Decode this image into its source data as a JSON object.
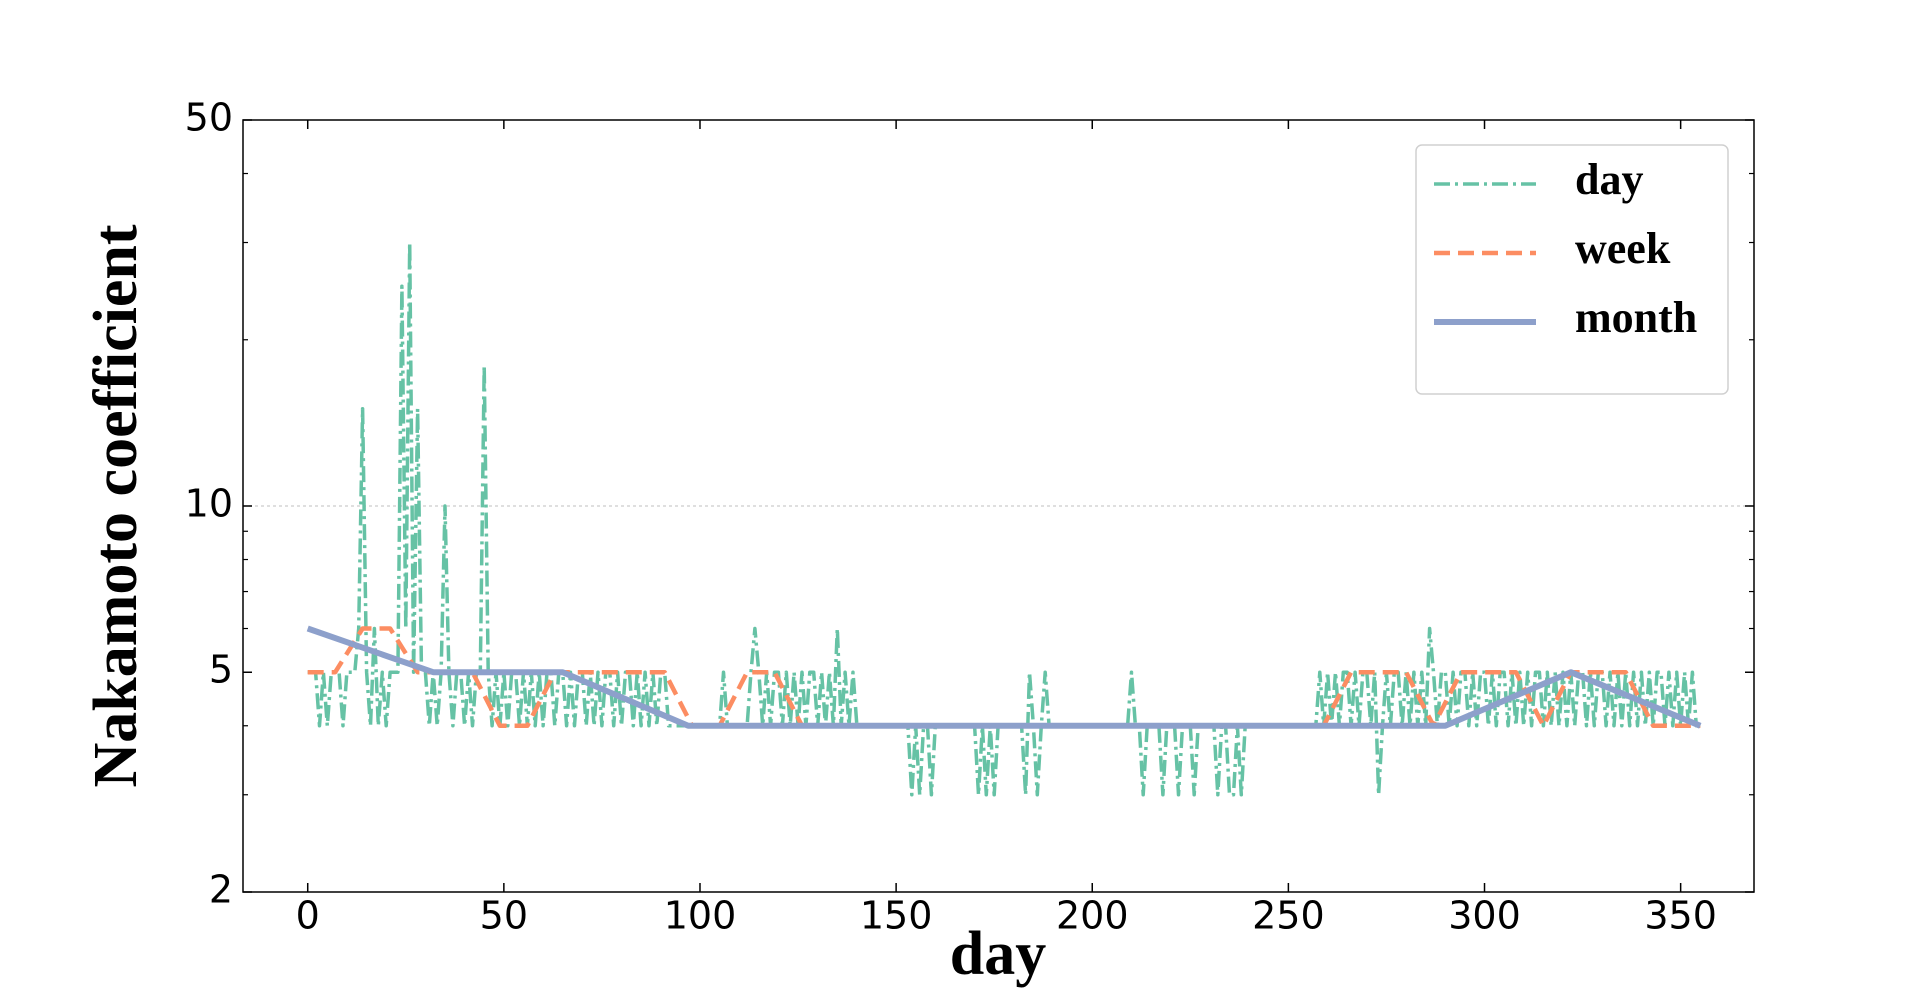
{
  "chart_data": {
    "type": "line",
    "xlabel": "day",
    "ylabel": "Nakamoto coefficient",
    "xlim": [
      -16.5,
      368.7
    ],
    "xticks": [
      0,
      50,
      100,
      150,
      200,
      250,
      300,
      350
    ],
    "ylim": [
      2,
      50
    ],
    "logy": true,
    "yticks": [
      2,
      5,
      10,
      50
    ],
    "yminorticks": [
      3,
      4,
      6,
      7,
      8,
      9,
      20,
      30,
      40
    ],
    "grid": true,
    "legend": "upper right",
    "series": [
      {
        "name": "day",
        "color": "#66c2a5",
        "style": "dashdot",
        "x": [
          0,
          1,
          2,
          3,
          4,
          5,
          6,
          7,
          8,
          9,
          10,
          11,
          12,
          13,
          14,
          15,
          16,
          17,
          18,
          19,
          20,
          21,
          22,
          23,
          24,
          25,
          26,
          27,
          28,
          29,
          30,
          31,
          32,
          33,
          34,
          35,
          36,
          37,
          38,
          39,
          40,
          41,
          42,
          43,
          44,
          45,
          46,
          47,
          48,
          49,
          50,
          51,
          52,
          53,
          54,
          55,
          56,
          57,
          58,
          59,
          60,
          61,
          62,
          63,
          64,
          65,
          66,
          67,
          68,
          69,
          70,
          71,
          72,
          73,
          74,
          75,
          76,
          77,
          78,
          79,
          80,
          81,
          82,
          83,
          84,
          85,
          86,
          87,
          88,
          89,
          90,
          91,
          92,
          93,
          94,
          95,
          96,
          97,
          98,
          99,
          100,
          101,
          102,
          103,
          104,
          105,
          106,
          107,
          108,
          109,
          110,
          111,
          112,
          113,
          114,
          115,
          116,
          117,
          118,
          119,
          120,
          121,
          122,
          123,
          124,
          125,
          126,
          127,
          128,
          129,
          130,
          131,
          132,
          133,
          134,
          135,
          136,
          137,
          138,
          139,
          140,
          141,
          142,
          143,
          144,
          145,
          146,
          147,
          148,
          149,
          150,
          151,
          152,
          153,
          154,
          155,
          156,
          157,
          158,
          159,
          160,
          161,
          162,
          163,
          164,
          165,
          166,
          167,
          168,
          169,
          170,
          171,
          172,
          173,
          174,
          175,
          176,
          177,
          178,
          179,
          180,
          181,
          182,
          183,
          184,
          185,
          186,
          187,
          188,
          189,
          190,
          191,
          192,
          193,
          194,
          195,
          196,
          197,
          198,
          199,
          200,
          201,
          202,
          203,
          204,
          205,
          206,
          207,
          208,
          209,
          210,
          211,
          212,
          213,
          214,
          215,
          216,
          217,
          218,
          219,
          220,
          221,
          222,
          223,
          224,
          225,
          226,
          227,
          228,
          229,
          230,
          231,
          232,
          233,
          234,
          235,
          236,
          237,
          238,
          239,
          240,
          241,
          242,
          243,
          244,
          245,
          246,
          247,
          248,
          249,
          250,
          251,
          252,
          253,
          254,
          255,
          256,
          257,
          258,
          259,
          260,
          261,
          262,
          263,
          264,
          265,
          266,
          267,
          268,
          269,
          270,
          271,
          272,
          273,
          274,
          275,
          276,
          277,
          278,
          279,
          280,
          281,
          282,
          283,
          284,
          285,
          286,
          287,
          288,
          289,
          290,
          291,
          292,
          293,
          294,
          295,
          296,
          297,
          298,
          299,
          300,
          301,
          302,
          303,
          304,
          305,
          306,
          307,
          308,
          309,
          310,
          311,
          312,
          313,
          314,
          315,
          316,
          317,
          318,
          319,
          320,
          321,
          322,
          323,
          324,
          325,
          326,
          327,
          328,
          329,
          330,
          331,
          332,
          333,
          334,
          335,
          336,
          337,
          338,
          339,
          340,
          341,
          342,
          343,
          344,
          345,
          346,
          347,
          348,
          349,
          350,
          351,
          352,
          353,
          354,
          355
        ],
        "values": [
          5,
          5,
          5,
          4,
          5,
          4,
          5,
          5,
          5,
          4,
          5,
          5,
          5,
          6,
          15,
          5,
          4,
          6,
          4,
          5,
          4,
          5,
          5,
          5,
          25,
          6,
          30,
          5,
          15,
          5,
          5,
          4,
          5,
          4,
          5,
          10,
          5,
          4,
          5,
          5,
          4,
          5,
          4,
          5,
          5,
          18,
          5,
          4,
          5,
          4,
          5,
          4,
          5,
          5,
          4,
          5,
          4,
          5,
          4,
          5,
          4,
          5,
          5,
          4,
          5,
          5,
          4,
          5,
          4,
          5,
          5,
          4,
          5,
          4,
          5,
          4,
          5,
          5,
          4,
          5,
          4,
          5,
          5,
          4,
          5,
          4,
          5,
          4,
          5,
          4,
          5,
          5,
          4,
          4,
          4,
          4,
          4,
          4,
          4,
          4,
          4,
          4,
          4,
          4,
          4,
          4,
          5,
          4,
          4,
          4,
          4,
          4,
          4,
          5,
          6,
          5,
          4,
          5,
          4,
          5,
          5,
          4,
          5,
          4,
          5,
          4,
          5,
          4,
          5,
          5,
          4,
          5,
          4,
          5,
          4,
          6,
          4,
          5,
          4,
          5,
          4,
          4,
          4,
          4,
          4,
          4,
          4,
          4,
          4,
          4,
          4,
          4,
          4,
          4,
          3,
          4,
          3,
          4,
          4,
          3,
          4,
          4,
          4,
          4,
          4,
          4,
          4,
          4,
          4,
          4,
          4,
          3,
          4,
          3,
          4,
          3,
          4,
          4,
          4,
          4,
          4,
          4,
          4,
          3,
          5,
          4,
          3,
          4,
          5,
          4,
          4,
          4,
          4,
          4,
          4,
          4,
          4,
          4,
          4,
          4,
          4,
          4,
          4,
          4,
          4,
          4,
          4,
          4,
          4,
          4,
          5,
          4,
          4,
          3,
          4,
          4,
          4,
          4,
          3,
          4,
          4,
          4,
          3,
          4,
          4,
          4,
          3,
          4,
          4,
          4,
          4,
          4,
          3,
          4,
          4,
          3,
          3,
          4,
          3,
          4,
          4,
          4,
          4,
          4,
          4,
          4,
          4,
          4,
          4,
          4,
          4,
          4,
          4,
          4,
          4,
          4,
          4,
          4,
          5,
          4,
          5,
          4,
          5,
          4,
          5,
          5,
          4,
          5,
          4,
          5,
          5,
          4,
          5,
          3,
          4,
          5,
          4,
          5,
          5,
          4,
          5,
          4,
          5,
          4,
          5,
          4,
          6,
          5,
          4,
          5,
          5,
          4,
          5,
          4,
          5,
          5,
          4,
          5,
          4,
          5,
          5,
          4,
          5,
          4,
          5,
          5,
          4,
          5,
          4,
          5,
          4,
          5,
          4,
          5,
          5,
          4,
          5,
          4,
          5,
          4,
          5,
          4,
          5,
          4,
          5,
          5,
          4,
          5,
          4,
          5,
          5,
          4,
          5,
          4,
          5,
          4,
          5,
          4,
          5,
          4,
          5,
          4,
          5,
          4,
          5,
          5,
          4,
          5,
          4,
          5,
          4,
          5,
          4,
          5,
          4,
          4
        ]
      },
      {
        "name": "week",
        "color": "#fc8d62",
        "style": "dashed",
        "x": [
          0,
          7,
          14,
          21,
          28,
          35,
          42,
          49,
          56,
          63,
          70,
          77,
          84,
          91,
          98,
          105,
          112,
          119,
          126,
          133,
          140,
          147,
          154,
          161,
          168,
          175,
          182,
          189,
          196,
          203,
          210,
          217,
          224,
          231,
          238,
          245,
          252,
          259,
          266,
          273,
          280,
          287,
          294,
          301,
          308,
          315,
          322,
          329,
          336,
          343,
          350,
          355
        ],
        "values": [
          5,
          5,
          6,
          6,
          5,
          5,
          5,
          4,
          4,
          5,
          5,
          5,
          5,
          5,
          4,
          4,
          5,
          5,
          4,
          4,
          4,
          4,
          4,
          4,
          4,
          4,
          4,
          4,
          4,
          4,
          4,
          4,
          4,
          4,
          4,
          4,
          4,
          4,
          5,
          5,
          5,
          4,
          5,
          5,
          5,
          4,
          5,
          5,
          5,
          4,
          4,
          4
        ]
      },
      {
        "name": "month",
        "color": "#8da0cb",
        "style": "solid",
        "x": [
          0,
          32,
          65,
          97,
          129,
          161,
          193,
          226,
          258,
          290,
          322,
          355
        ],
        "values": [
          6,
          5,
          5,
          4,
          4,
          4,
          4,
          4,
          4,
          4,
          5,
          4
        ]
      }
    ]
  }
}
